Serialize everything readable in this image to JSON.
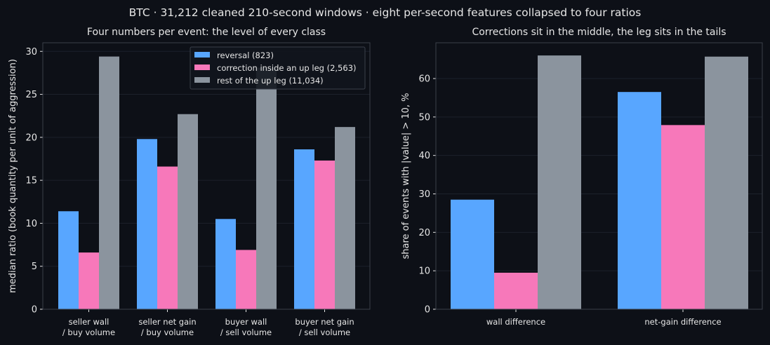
{
  "suptitle": "BTC · 31,212 cleaned 210-second windows · eight per-second features collapsed to four ratios",
  "colors": {
    "background": "#0d1017",
    "grid": "#1c212b",
    "axis": "#3a3f4a",
    "text": "#e6e6e6",
    "reversal": "#58a6ff",
    "correction": "#f778ba",
    "rest": "#8b949e"
  },
  "chart_data": [
    {
      "type": "bar",
      "title": "Four numbers per event: the level of every class",
      "xlabel": "",
      "ylabel": "median ratio (book quantity per unit of aggression)",
      "categories": [
        [
          "seller wall",
          "/ buy volume"
        ],
        [
          "seller net gain",
          "/ buy volume"
        ],
        [
          "buyer wall",
          "/ sell volume"
        ],
        [
          "buyer net gain",
          "/ sell volume"
        ]
      ],
      "series": [
        {
          "name": "reversal (823)",
          "color": "#58a6ff",
          "values": [
            11.4,
            19.8,
            10.5,
            18.6
          ]
        },
        {
          "name": "correction inside an up leg (2,563)",
          "color": "#f778ba",
          "values": [
            6.6,
            16.6,
            6.9,
            17.3
          ]
        },
        {
          "name": "rest of the up leg (11,034)",
          "color": "#8b949e",
          "values": [
            29.4,
            22.7,
            28.1,
            21.2
          ]
        }
      ],
      "ylim": [
        0,
        31
      ],
      "yticks": [
        0,
        5,
        10,
        15,
        20,
        25,
        30
      ],
      "grid": true,
      "legend": "top-right"
    },
    {
      "type": "bar",
      "title": "Corrections sit in the middle, the leg sits in the tails",
      "xlabel": "",
      "ylabel": "share of events with |value| > 10, %",
      "categories": [
        [
          "wall difference"
        ],
        [
          "net-gain difference"
        ]
      ],
      "series": [
        {
          "color": "#58a6ff",
          "values": [
            28.5,
            56.5
          ]
        },
        {
          "color": "#f778ba",
          "values": [
            9.5,
            47.9
          ]
        },
        {
          "color": "#8b949e",
          "values": [
            66.0,
            65.7
          ]
        }
      ],
      "ylim": [
        0,
        69.3
      ],
      "yticks": [
        0,
        10,
        20,
        30,
        40,
        50,
        60
      ],
      "grid": true
    }
  ]
}
